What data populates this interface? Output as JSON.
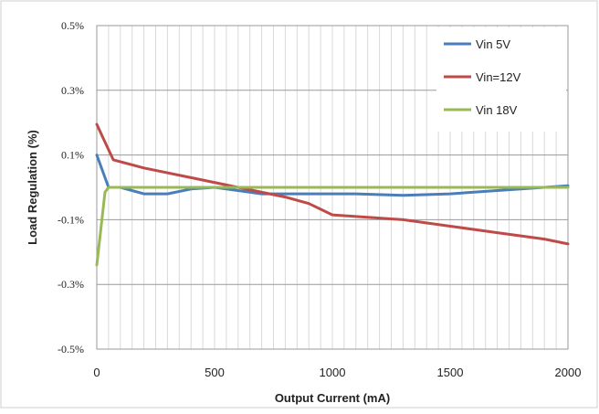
{
  "chart_data": {
    "type": "line",
    "title": "",
    "xlabel": "Output Current (mA)",
    "ylabel": "Load Regulation (%)",
    "xlim": [
      0,
      2000
    ],
    "ylim": [
      -0.5,
      0.5
    ],
    "x_ticks": [
      0,
      500,
      1000,
      1500,
      2000
    ],
    "x_tick_labels": [
      "0",
      "500",
      "1000",
      "1500",
      "2000"
    ],
    "y_ticks": [
      0.5,
      0.3,
      0.1,
      -0.1,
      -0.3,
      -0.5
    ],
    "y_tick_labels": [
      "0.5%",
      "0.3%",
      "0.1%",
      "-0.1%",
      "-0.3%",
      "-0.5%"
    ],
    "grid": true,
    "legend_position": "top-right",
    "series": [
      {
        "name": "Vin 5V",
        "color": "#4A7EBB",
        "points": [
          [
            0,
            0.1
          ],
          [
            50,
            0.0
          ],
          [
            100,
            0.0
          ],
          [
            200,
            -0.02
          ],
          [
            300,
            -0.02
          ],
          [
            400,
            -0.005
          ],
          [
            500,
            0.0
          ],
          [
            600,
            -0.01
          ],
          [
            700,
            -0.02
          ],
          [
            900,
            -0.02
          ],
          [
            1100,
            -0.02
          ],
          [
            1300,
            -0.025
          ],
          [
            1500,
            -0.02
          ],
          [
            1700,
            -0.01
          ],
          [
            1900,
            0.0
          ],
          [
            2000,
            0.005
          ]
        ]
      },
      {
        "name": "Vin=12V",
        "color": "#BE4B48",
        "points": [
          [
            0,
            0.195
          ],
          [
            25,
            0.155
          ],
          [
            70,
            0.085
          ],
          [
            200,
            0.06
          ],
          [
            400,
            0.03
          ],
          [
            600,
            0.0
          ],
          [
            800,
            -0.03
          ],
          [
            900,
            -0.05
          ],
          [
            1000,
            -0.085
          ],
          [
            1100,
            -0.09
          ],
          [
            1300,
            -0.1
          ],
          [
            1500,
            -0.12
          ],
          [
            1700,
            -0.14
          ],
          [
            1900,
            -0.16
          ],
          [
            2000,
            -0.175
          ]
        ]
      },
      {
        "name": "Vin 18V",
        "color": "#98B954",
        "points": [
          [
            0,
            -0.24
          ],
          [
            35,
            -0.015
          ],
          [
            50,
            0.0
          ],
          [
            100,
            0.0
          ],
          [
            500,
            0.0
          ],
          [
            1000,
            0.0
          ],
          [
            1500,
            0.0
          ],
          [
            2000,
            0.0
          ]
        ]
      }
    ]
  }
}
